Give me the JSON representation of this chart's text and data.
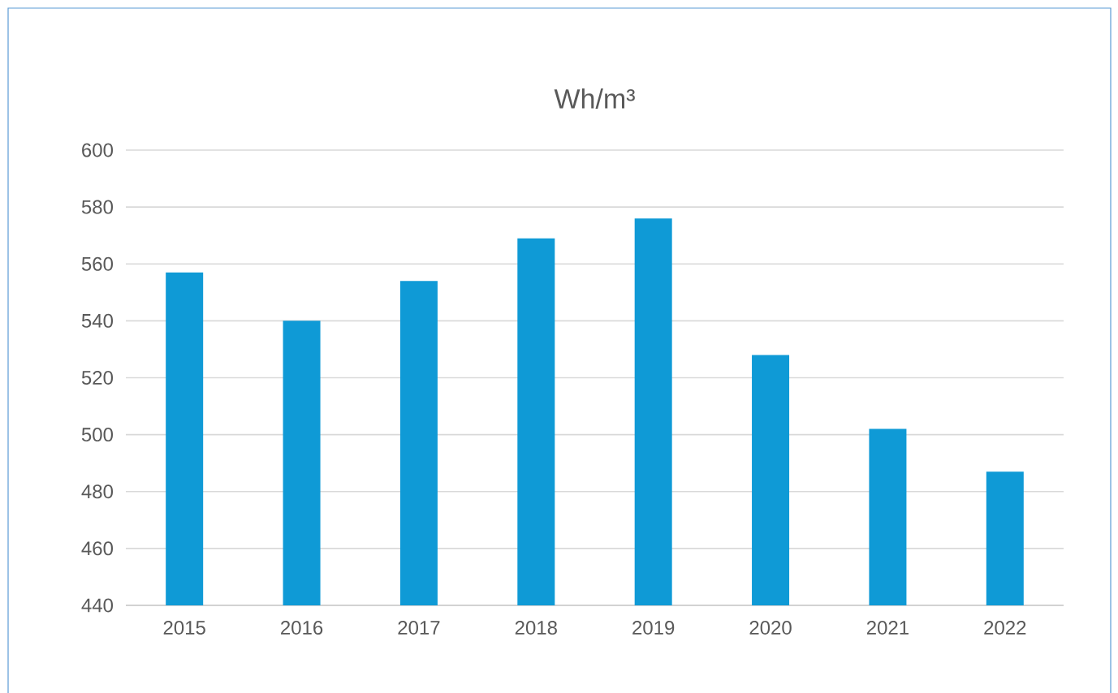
{
  "chart_data": {
    "type": "bar",
    "title": "Wh/m³",
    "categories": [
      "2015",
      "2016",
      "2017",
      "2018",
      "2019",
      "2020",
      "2021",
      "2022"
    ],
    "values": [
      557,
      540,
      554,
      569,
      576,
      528,
      502,
      487
    ],
    "color": "#0f9ad6",
    "ylim": [
      440,
      600
    ],
    "yticks": [
      440,
      460,
      480,
      500,
      520,
      540,
      560,
      580,
      600
    ],
    "grid": "y"
  }
}
